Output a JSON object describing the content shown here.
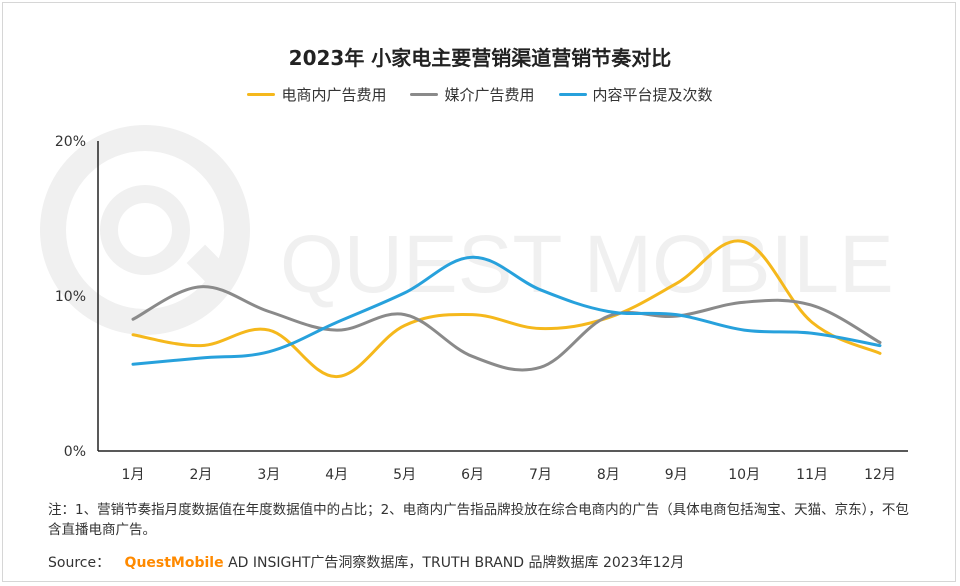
{
  "title": "2023年 小家电主要营销渠道营销节奏对比",
  "watermark": "QUEST MOBILE",
  "chart_data": {
    "type": "line",
    "categories": [
      "1月",
      "2月",
      "3月",
      "4月",
      "5月",
      "6月",
      "7月",
      "8月",
      "9月",
      "10月",
      "11月",
      "12月"
    ],
    "series": [
      {
        "name": "电商内广告费用",
        "color": "#f5b81c",
        "values": [
          7.5,
          6.8,
          7.8,
          4.8,
          8.1,
          8.8,
          7.9,
          8.6,
          10.8,
          13.5,
          8.3,
          6.3
        ]
      },
      {
        "name": "媒介广告费用",
        "color": "#8a8a8a",
        "values": [
          8.5,
          10.6,
          9.0,
          7.8,
          8.8,
          6.1,
          5.4,
          8.7,
          8.7,
          9.6,
          9.4,
          7.0
        ]
      },
      {
        "name": "内容平台提及次数",
        "color": "#27a1dc",
        "values": [
          5.6,
          6.0,
          6.4,
          8.3,
          10.2,
          12.5,
          10.4,
          9.0,
          8.8,
          7.8,
          7.6,
          6.8
        ]
      }
    ],
    "y_ticks": [
      "0%",
      "10%",
      "20%"
    ],
    "ylim": [
      0,
      20
    ],
    "grid": false
  },
  "note": "注：1、营销节奏指月度数据值在年度数据值中的占比；2、电商内广告指品牌投放在综合电商内的广告（具体电商包括淘宝、天猫、京东），不包含直播电商广告。",
  "source": {
    "label": "Source：",
    "brand": "QuestMobile",
    "text": "AD INSIGHT广告洞察数据库，TRUTH BRAND 品牌数据库 2023年12月"
  }
}
